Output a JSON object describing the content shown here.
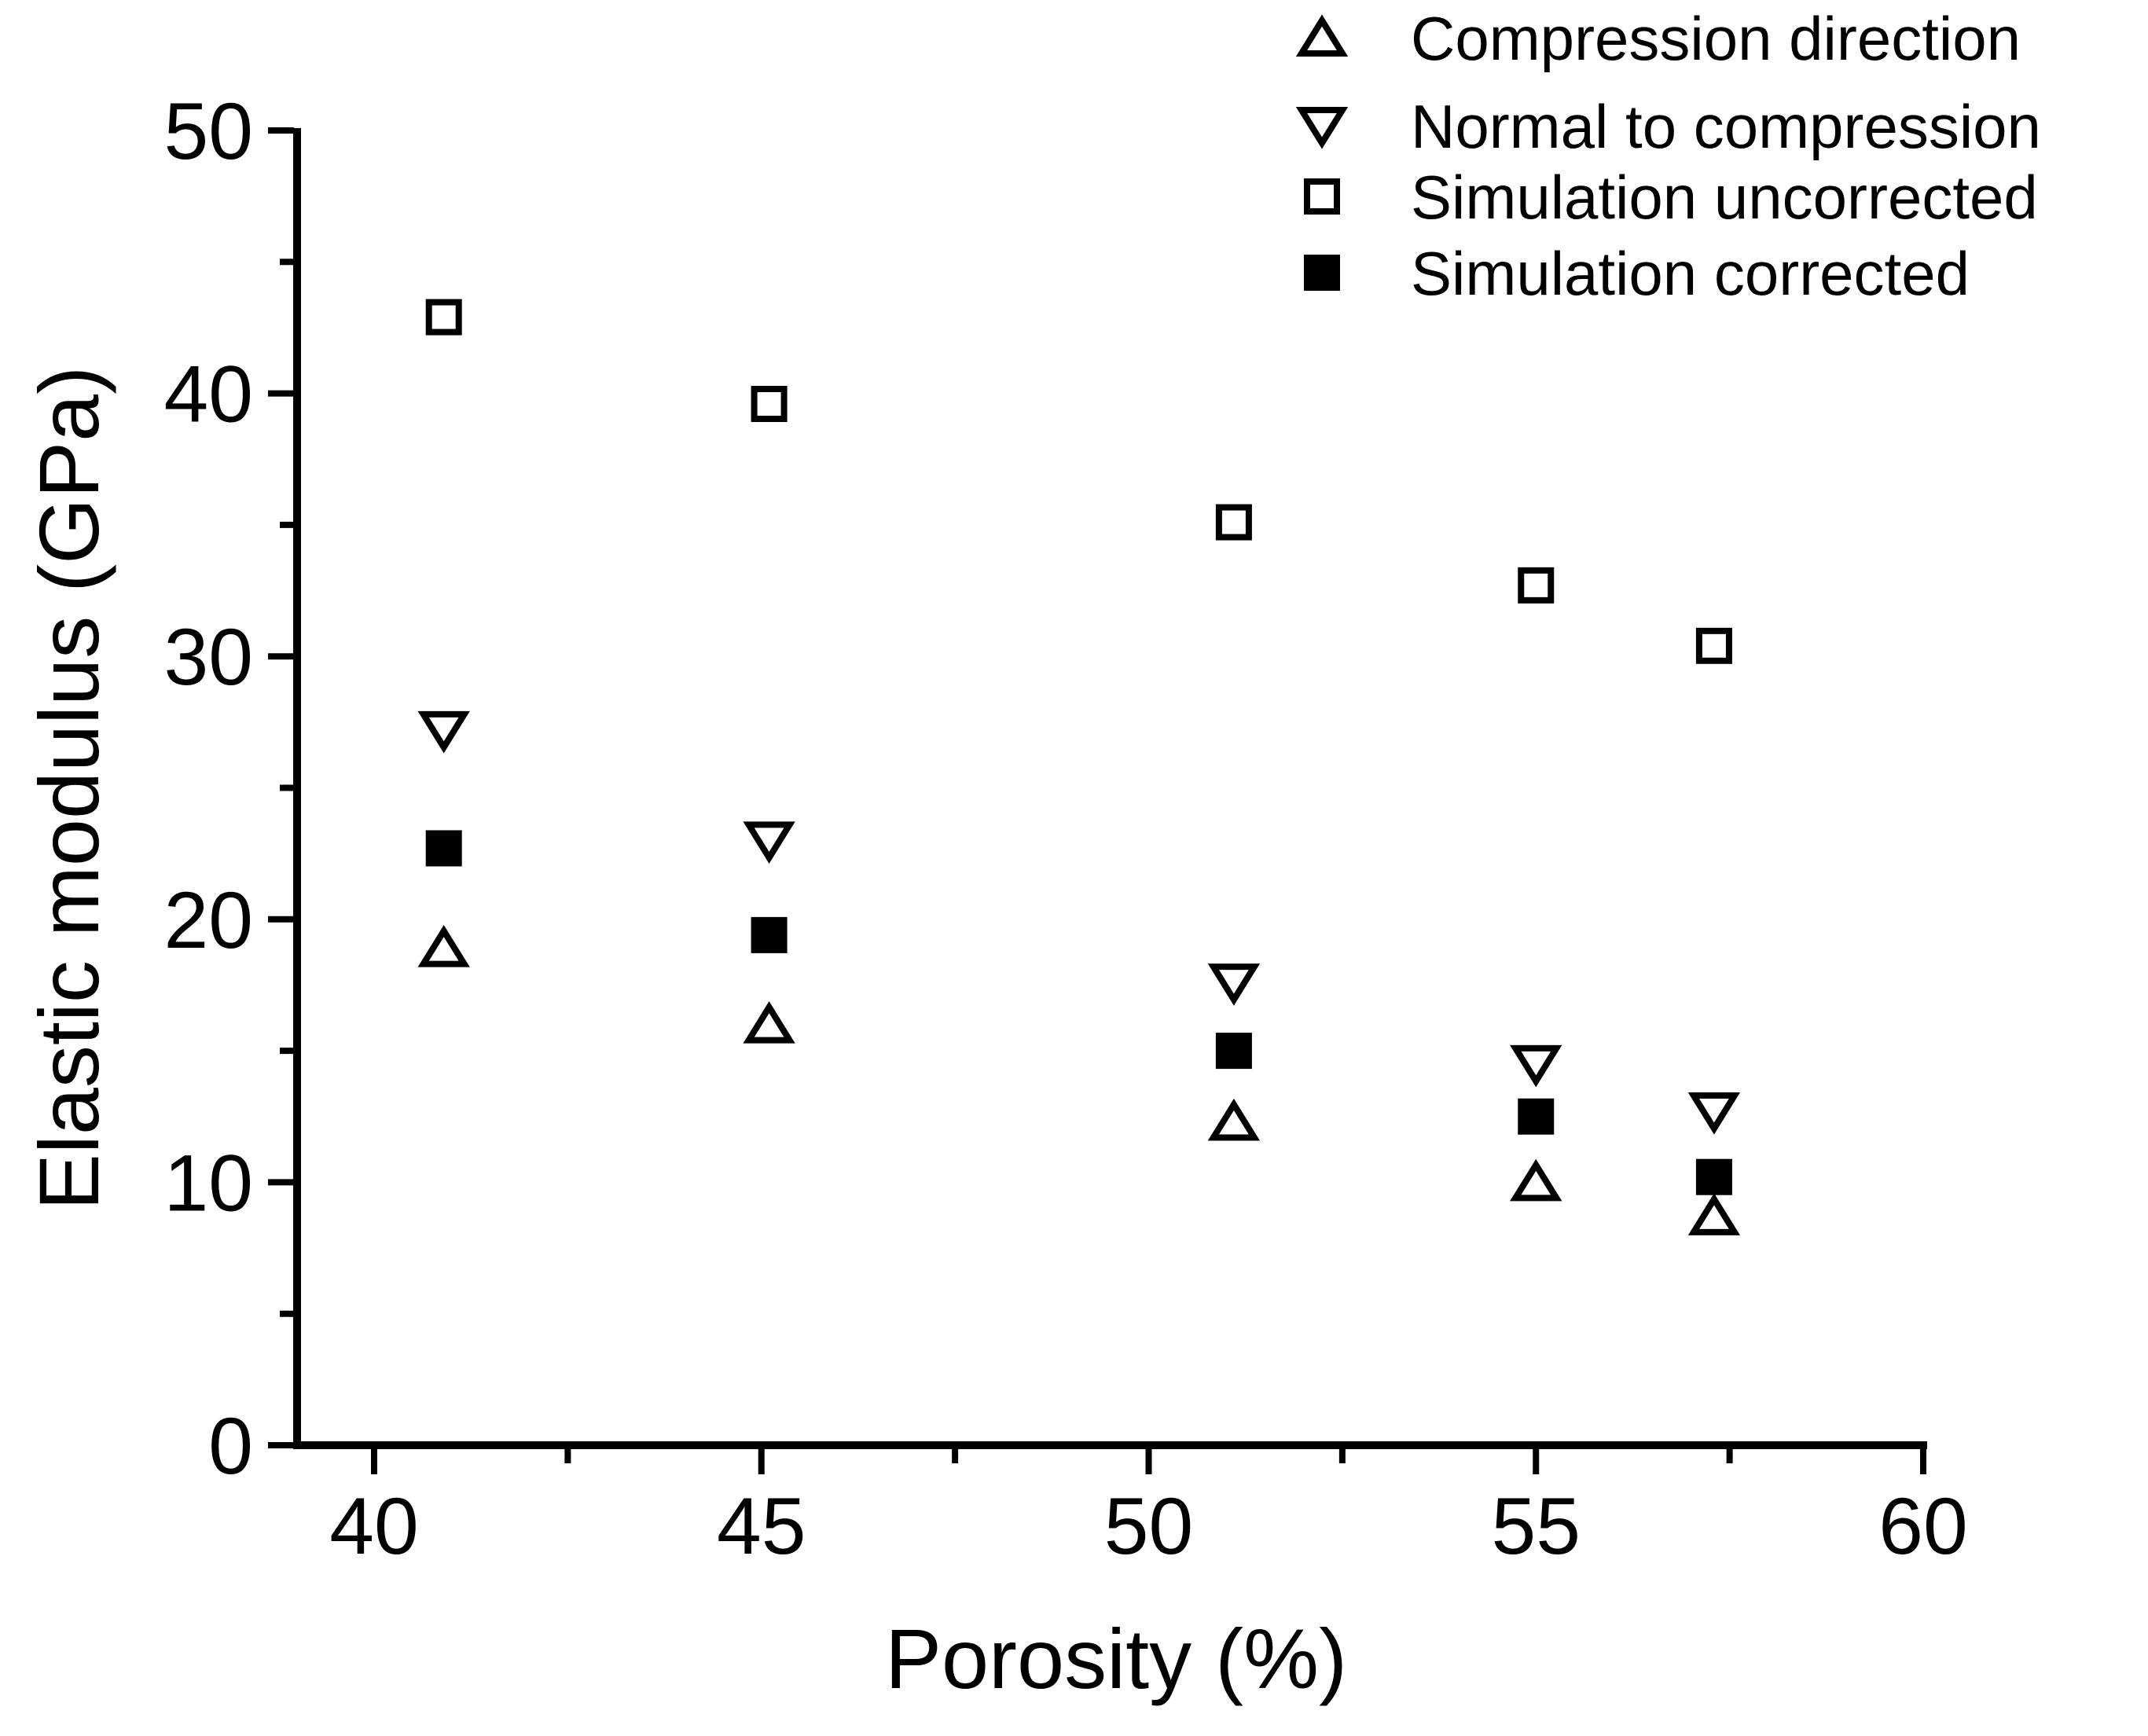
{
  "chart_data": {
    "type": "scatter",
    "title": "",
    "xlabel": "Porosity (%)",
    "ylabel": "Elastic modulus (GPa)",
    "xlim": [
      39.0,
      60.05
    ],
    "ylim": [
      0,
      50.1
    ],
    "grid": false,
    "legend_position": "top-right",
    "x_major_ticks": [
      40,
      45,
      50,
      55,
      60
    ],
    "x_tick_labels": [
      "40",
      "45",
      "50",
      "55",
      "60"
    ],
    "x_minor_ticks": [
      42.5,
      47.5,
      52.5,
      57.5
    ],
    "y_major_ticks": [
      0,
      10,
      20,
      30,
      40,
      50
    ],
    "y_tick_labels": [
      "0",
      "10",
      "20",
      "30",
      "40",
      "50"
    ],
    "y_minor_ticks": [
      5,
      15,
      25,
      35,
      45
    ],
    "x": [
      40.9,
      45.1,
      51.1,
      55.0,
      57.3
    ],
    "series": [
      {
        "name": "Compression direction",
        "marker": "triangle-up",
        "filled": false,
        "values": [
          18.9,
          16.0,
          12.3,
          10.0,
          8.7
        ]
      },
      {
        "name": "Normal to compression",
        "marker": "triangle-down",
        "filled": false,
        "values": [
          27.2,
          23.0,
          17.6,
          14.5,
          12.7
        ]
      },
      {
        "name": "Simulation uncorrected",
        "marker": "square",
        "filled": false,
        "values": [
          42.9,
          39.6,
          35.1,
          32.7,
          30.4
        ]
      },
      {
        "name": "Simulation corrected",
        "marker": "square",
        "filled": true,
        "values": [
          22.7,
          19.4,
          15.0,
          12.5,
          10.2
        ]
      }
    ],
    "colors": {
      "marker": "#000000",
      "background": "#ffffff"
    }
  }
}
